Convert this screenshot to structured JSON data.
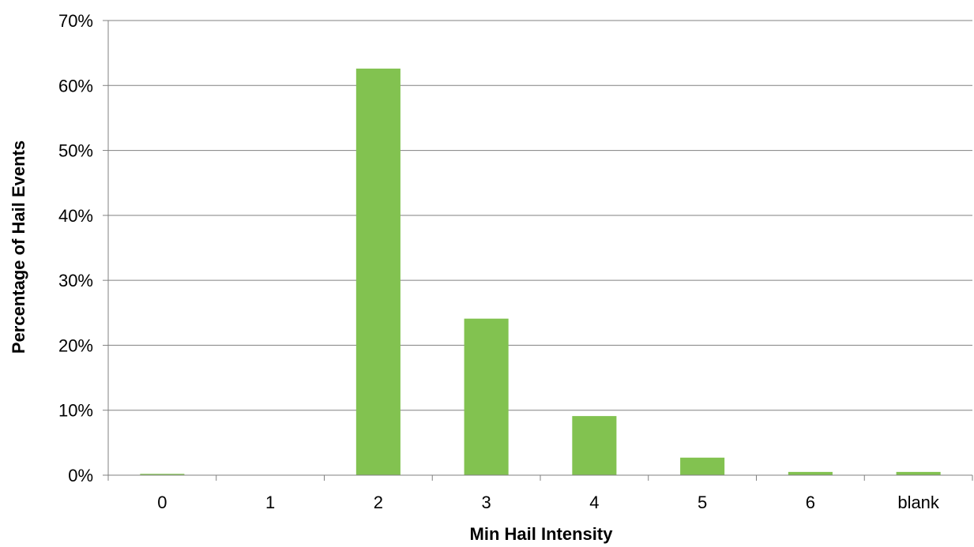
{
  "chart_data": {
    "type": "bar",
    "title": "",
    "xlabel": "Min Hail Intensity",
    "ylabel": "Percentage of Hail Events",
    "categories": [
      "0",
      "1",
      "2",
      "3",
      "4",
      "5",
      "6",
      "blank"
    ],
    "values": [
      0.2,
      0,
      62.6,
      24.1,
      9.1,
      2.7,
      0.5,
      0.5
    ],
    "ylim": [
      0,
      70
    ],
    "yticks": [
      0,
      10,
      20,
      30,
      40,
      50,
      60,
      70
    ],
    "ytick_labels": [
      "0%",
      "10%",
      "20%",
      "30%",
      "40%",
      "50%",
      "60%",
      "70%"
    ],
    "grid": true,
    "legend": "none",
    "bar_color": "#82c250",
    "gridline_color": "#808080"
  }
}
